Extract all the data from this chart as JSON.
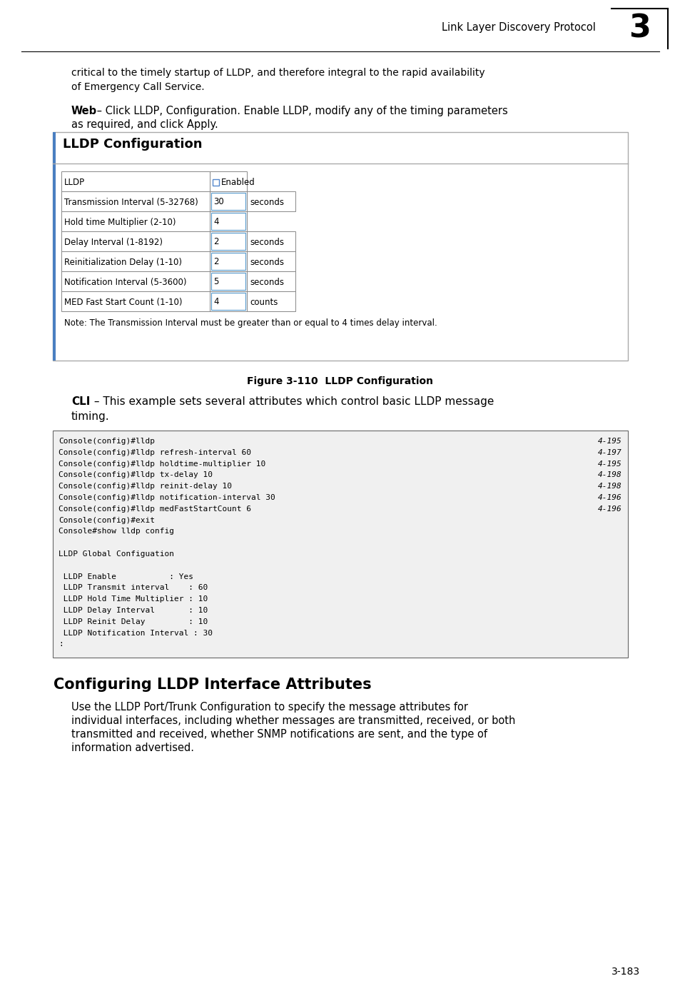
{
  "page_header_text": "Link Layer Discovery Protocol",
  "page_header_number": "3",
  "intro_text_line1": "critical to the timely startup of LLDP, and therefore integral to the rapid availability",
  "intro_text_line2": "of Emergency Call Service.",
  "web_label": "Web",
  "web_text": " – Click LLDP, Configuration. Enable LLDP, modify any of the timing parameters",
  "web_text2": "as required, and click Apply.",
  "box_title": "LLDP Configuration",
  "table_rows": [
    {
      "label": "LLDP",
      "value": "",
      "unit": "",
      "checkbox": true
    },
    {
      "label": "Transmission Interval (5-32768)",
      "value": "30",
      "unit": "seconds",
      "checkbox": false
    },
    {
      "label": "Hold time Multiplier (2-10)",
      "value": "4",
      "unit": "",
      "checkbox": false
    },
    {
      "label": "Delay Interval (1-8192)",
      "value": "2",
      "unit": "seconds",
      "checkbox": false
    },
    {
      "label": "Reinitialization Delay (1-10)",
      "value": "2",
      "unit": "seconds",
      "checkbox": false
    },
    {
      "label": "Notification Interval (5-3600)",
      "value": "5",
      "unit": "seconds",
      "checkbox": false
    },
    {
      "label": "MED Fast Start Count (1-10)",
      "value": "4",
      "unit": "counts",
      "checkbox": false
    }
  ],
  "note_text": "Note: The Transmission Interval must be greater than or equal to 4 times delay interval.",
  "figure_caption": "Figure 3-110  LLDP Configuration",
  "cli_label": "CLI",
  "cli_text": " – This example sets several attributes which control basic LLDP message",
  "cli_text2": "timing.",
  "code_lines": [
    {
      "left": "Console(config)#lldp",
      "right": "4-195"
    },
    {
      "left": "Console(config)#lldp refresh-interval 60",
      "right": "4-197"
    },
    {
      "left": "Console(config)#lldp holdtime-multiplier 10",
      "right": "4-195"
    },
    {
      "left": "Console(config)#lldp tx-delay 10",
      "right": "4-198"
    },
    {
      "left": "Console(config)#lldp reinit-delay 10",
      "right": "4-198"
    },
    {
      "left": "Console(config)#lldp notification-interval 30",
      "right": "4-196"
    },
    {
      "left": "Console(config)#lldp medFastStartCount 6",
      "right": "4-196"
    },
    {
      "left": "Console(config)#exit",
      "right": ""
    },
    {
      "left": "Console#show lldp config",
      "right": ""
    },
    {
      "left": "",
      "right": ""
    },
    {
      "left": "LLDP Global Configuation",
      "right": ""
    },
    {
      "left": "",
      "right": ""
    },
    {
      "left": " LLDP Enable           : Yes",
      "right": ""
    },
    {
      "left": " LLDP Transmit interval    : 60",
      "right": ""
    },
    {
      "left": " LLDP Hold Time Multiplier : 10",
      "right": ""
    },
    {
      "left": " LLDP Delay Interval       : 10",
      "right": ""
    },
    {
      "left": " LLDP Reinit Delay         : 10",
      "right": ""
    },
    {
      "left": " LLDP Notification Interval : 30",
      "right": ""
    },
    {
      "left": ":",
      "right": ""
    }
  ],
  "section_title": "Configuring LLDP Interface Attributes",
  "section_body_line1": "Use the LLDP Port/Trunk Configuration to specify the message attributes for",
  "section_body_line2": "individual interfaces, including whether messages are transmitted, received, or both",
  "section_body_line3": "transmitted and received, whether SNMP notifications are sent, and the type of",
  "section_body_line4": "information advertised.",
  "page_number": "3-183",
  "bg_color": "#ffffff",
  "box_border_color": "#4a90d9",
  "code_bg_color": "#f0f0f0",
  "code_border_color": "#666666"
}
